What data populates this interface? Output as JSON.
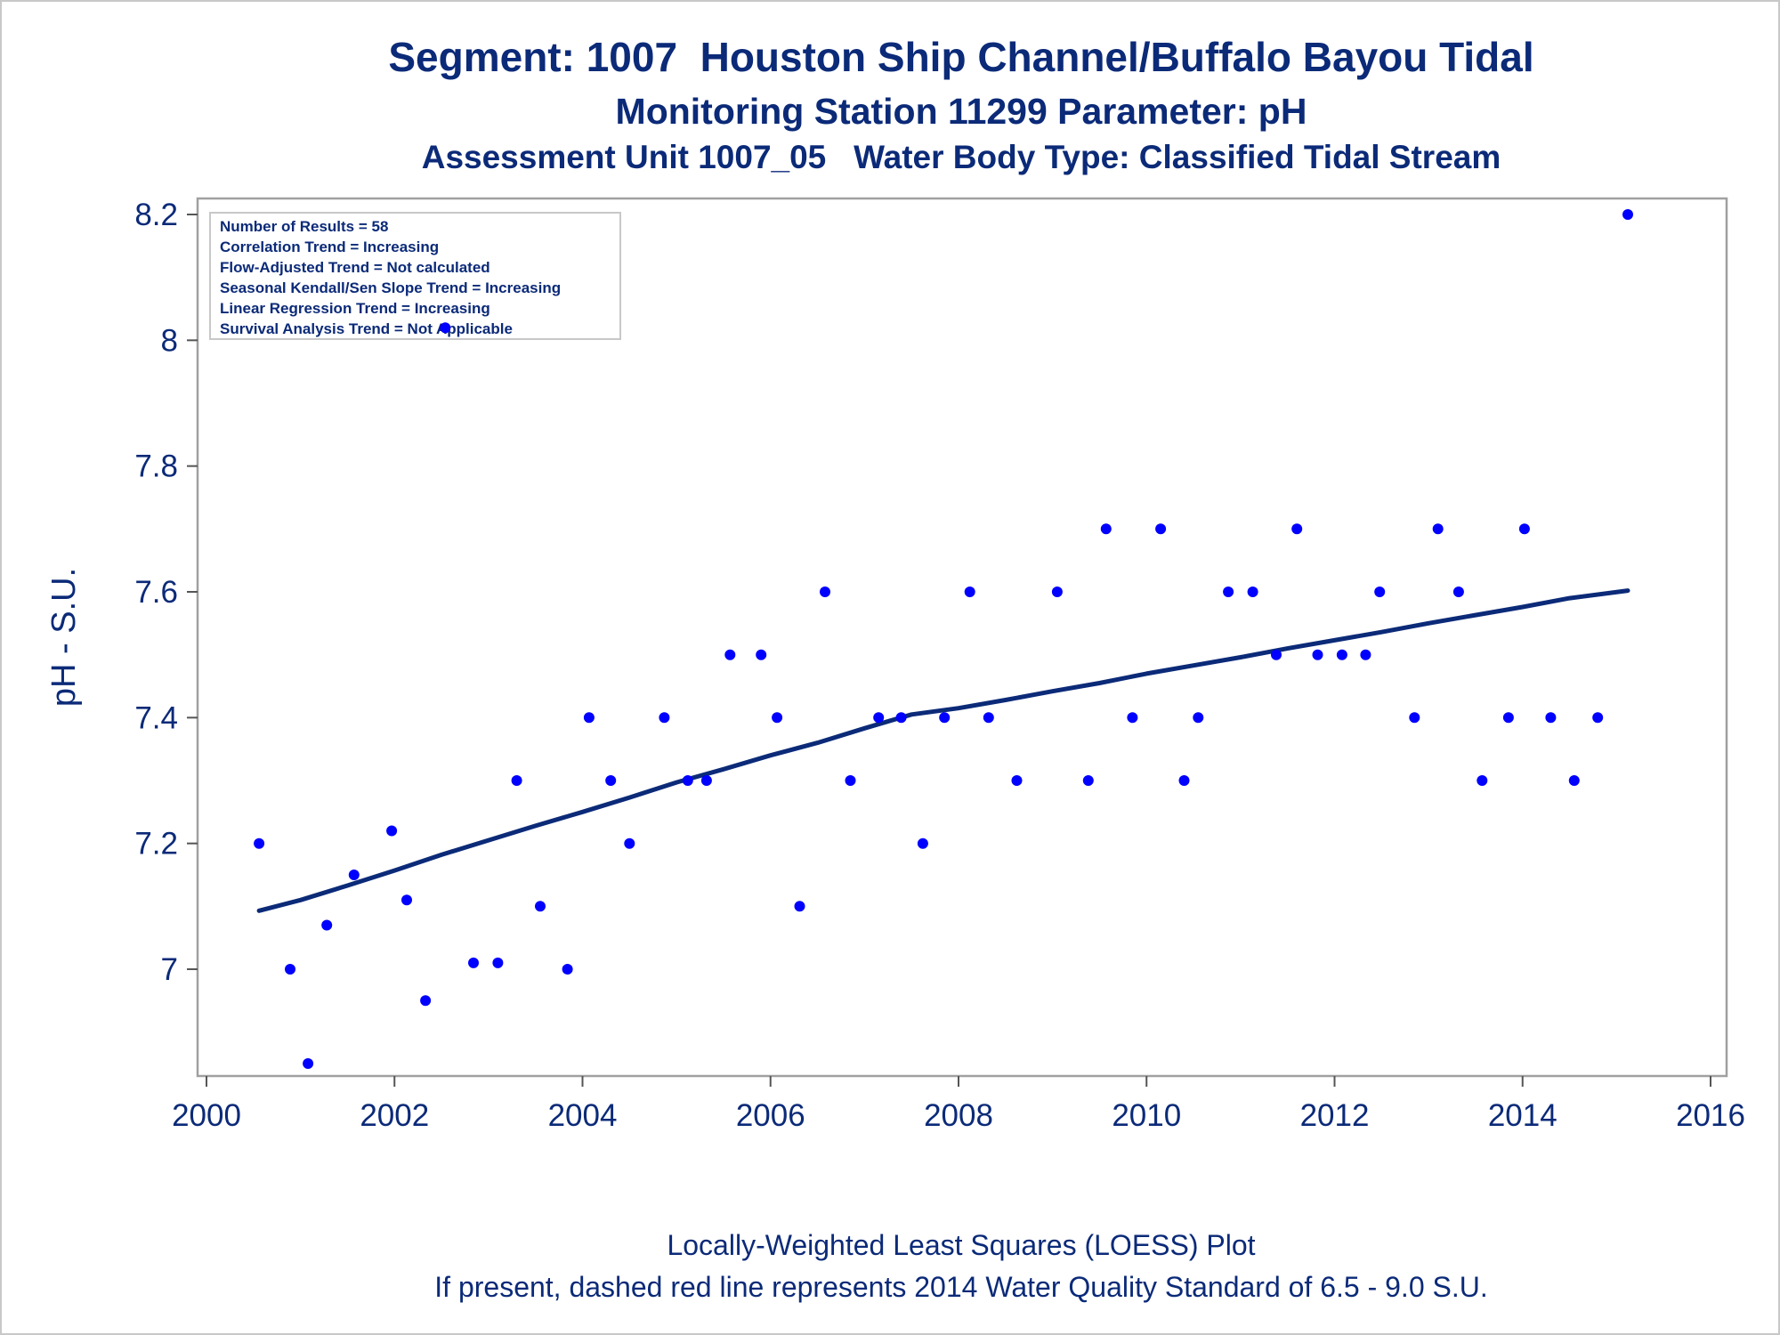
{
  "chart_data": {
    "type": "scatter",
    "title": "Segment: 1007  Houston Ship Channel/Buffalo Bayou Tidal",
    "subtitle": "Monitoring Station 11299 Parameter: pH",
    "subtitle2": "Assessment Unit 1007_05   Water Body Type: Classified Tidal Stream",
    "xlabel": "",
    "ylabel": "pH - S.U.",
    "xlim": [
      2000,
      2016
    ],
    "ylim": [
      6.84,
      8.22
    ],
    "xticks": [
      "2000",
      "2002",
      "2004",
      "2006",
      "2008",
      "2010",
      "2012",
      "2014",
      "2016"
    ],
    "yticks": [
      "7",
      "7.2",
      "7.4",
      "7.6",
      "7.8",
      "8",
      "8.2"
    ],
    "grid": false,
    "stats_box": [
      "Number of Results = 58",
      "Correlation Trend = Increasing",
      "Flow-Adjusted Trend = Not calculated",
      "Seasonal Kendall/Sen Slope Trend = Increasing",
      "Linear Regression Trend = Increasing",
      "Survival Analysis Trend = Not Applicable"
    ],
    "footnotes": [
      "Locally-Weighted Least Squares (LOESS) Plot",
      "If present, dashed red line represents 2014 Water Quality Standard of 6.5 - 9.0 S.U."
    ],
    "series": [
      {
        "type": "scatter",
        "color": "#0000ff",
        "points": [
          [
            2000.56,
            7.2
          ],
          [
            2000.89,
            7.0
          ],
          [
            2001.08,
            6.85
          ],
          [
            2001.28,
            7.07
          ],
          [
            2001.57,
            7.15
          ],
          [
            2001.97,
            7.22
          ],
          [
            2002.13,
            7.11
          ],
          [
            2002.33,
            6.95
          ],
          [
            2002.54,
            8.02
          ],
          [
            2002.84,
            7.01
          ],
          [
            2003.1,
            7.01
          ],
          [
            2003.3,
            7.3
          ],
          [
            2003.55,
            7.1
          ],
          [
            2003.84,
            7.0
          ],
          [
            2004.07,
            7.4
          ],
          [
            2004.3,
            7.3
          ],
          [
            2004.5,
            7.2
          ],
          [
            2004.87,
            7.4
          ],
          [
            2005.12,
            7.3
          ],
          [
            2005.32,
            7.3
          ],
          [
            2005.57,
            7.5
          ],
          [
            2005.9,
            7.5
          ],
          [
            2006.07,
            7.4
          ],
          [
            2006.31,
            7.1
          ],
          [
            2006.58,
            7.6
          ],
          [
            2006.85,
            7.3
          ],
          [
            2007.15,
            7.4
          ],
          [
            2007.39,
            7.4
          ],
          [
            2007.62,
            7.2
          ],
          [
            2007.85,
            7.4
          ],
          [
            2008.12,
            7.6
          ],
          [
            2008.32,
            7.4
          ],
          [
            2008.62,
            7.3
          ],
          [
            2009.05,
            7.6
          ],
          [
            2009.38,
            7.3
          ],
          [
            2009.57,
            7.7
          ],
          [
            2009.85,
            7.4
          ],
          [
            2010.15,
            7.7
          ],
          [
            2010.4,
            7.3
          ],
          [
            2010.55,
            7.4
          ],
          [
            2010.87,
            7.6
          ],
          [
            2011.13,
            7.6
          ],
          [
            2011.38,
            7.5
          ],
          [
            2011.6,
            7.7
          ],
          [
            2011.82,
            7.5
          ],
          [
            2012.08,
            7.5
          ],
          [
            2012.33,
            7.5
          ],
          [
            2012.48,
            7.6
          ],
          [
            2012.85,
            7.4
          ],
          [
            2013.1,
            7.7
          ],
          [
            2013.32,
            7.6
          ],
          [
            2013.57,
            7.3
          ],
          [
            2013.85,
            7.4
          ],
          [
            2014.02,
            7.7
          ],
          [
            2014.3,
            7.4
          ],
          [
            2014.55,
            7.3
          ],
          [
            2014.8,
            7.4
          ],
          [
            2015.12,
            8.2
          ]
        ]
      },
      {
        "type": "line",
        "color": "#0b2a78",
        "points": [
          [
            2000.56,
            7.093
          ],
          [
            2001.0,
            7.11
          ],
          [
            2001.5,
            7.133
          ],
          [
            2002.0,
            7.157
          ],
          [
            2002.5,
            7.182
          ],
          [
            2003.0,
            7.205
          ],
          [
            2003.5,
            7.228
          ],
          [
            2004.0,
            7.25
          ],
          [
            2004.5,
            7.273
          ],
          [
            2005.0,
            7.297
          ],
          [
            2005.5,
            7.318
          ],
          [
            2006.0,
            7.34
          ],
          [
            2006.5,
            7.36
          ],
          [
            2007.0,
            7.383
          ],
          [
            2007.5,
            7.405
          ],
          [
            2008.0,
            7.415
          ],
          [
            2008.5,
            7.428
          ],
          [
            2009.0,
            7.442
          ],
          [
            2009.5,
            7.455
          ],
          [
            2010.0,
            7.47
          ],
          [
            2010.5,
            7.483
          ],
          [
            2011.0,
            7.496
          ],
          [
            2011.5,
            7.51
          ],
          [
            2012.0,
            7.523
          ],
          [
            2012.5,
            7.536
          ],
          [
            2013.0,
            7.55
          ],
          [
            2013.5,
            7.563
          ],
          [
            2014.0,
            7.576
          ],
          [
            2014.5,
            7.59
          ],
          [
            2015.12,
            7.602
          ]
        ]
      }
    ]
  }
}
